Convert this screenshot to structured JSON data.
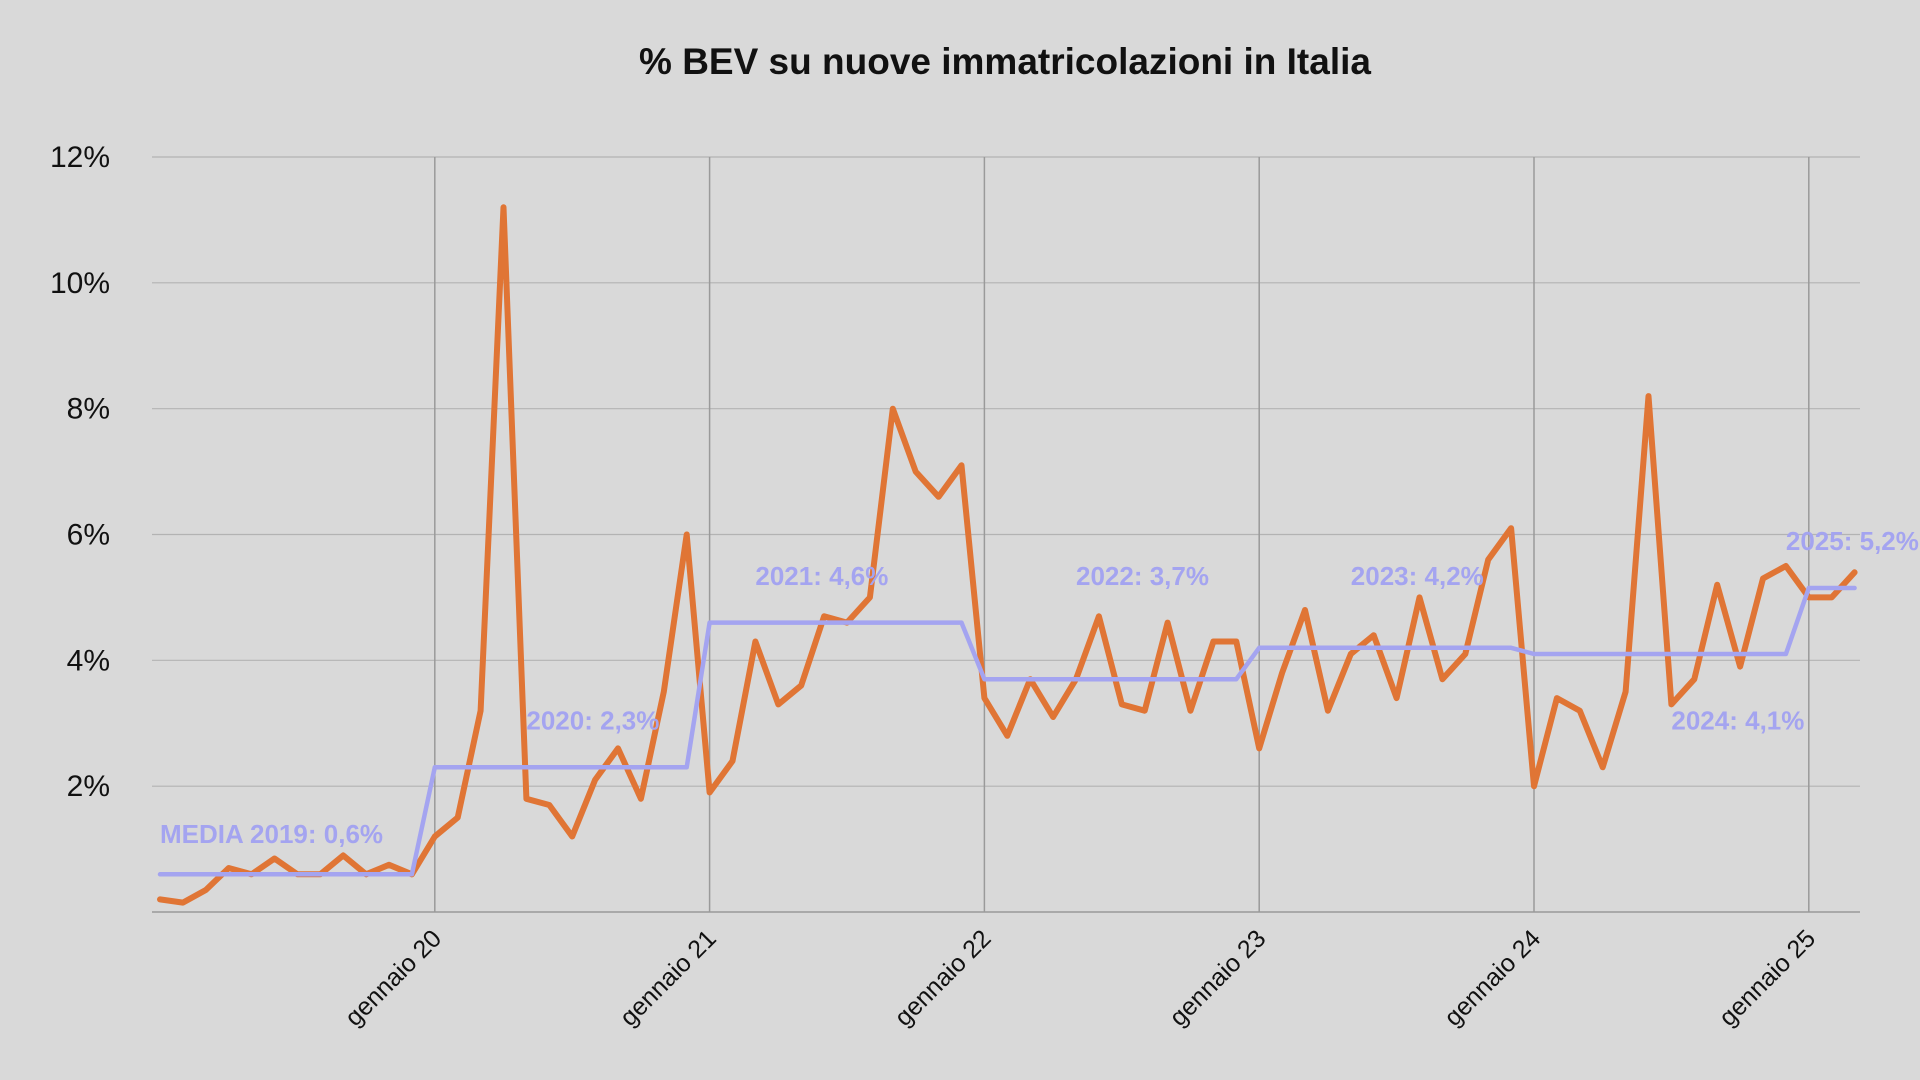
{
  "chart_data": {
    "type": "line",
    "title": "% BEV su nuove immatricolazioni in Italia",
    "xlabel": "",
    "ylabel": "",
    "ylim": [
      0,
      12
    ],
    "yticks": [
      {
        "value": 2,
        "label": "2%"
      },
      {
        "value": 4,
        "label": "4%"
      },
      {
        "value": 6,
        "label": "6%"
      },
      {
        "value": 8,
        "label": "8%"
      },
      {
        "value": 10,
        "label": "10%"
      },
      {
        "value": 12,
        "label": "12%"
      }
    ],
    "xticks": [
      {
        "value": "2020-01",
        "label": "gennaio 20"
      },
      {
        "value": "2021-01",
        "label": "gennaio 21"
      },
      {
        "value": "2022-01",
        "label": "gennaio 22"
      },
      {
        "value": "2023-01",
        "label": "gennaio 23"
      },
      {
        "value": "2024-01",
        "label": "gennaio 24"
      },
      {
        "value": "2025-01",
        "label": "gennaio 25"
      }
    ],
    "grid": true,
    "legend": "none",
    "x": [
      "2019-01",
      "2019-02",
      "2019-03",
      "2019-04",
      "2019-05",
      "2019-06",
      "2019-07",
      "2019-08",
      "2019-09",
      "2019-10",
      "2019-11",
      "2019-12",
      "2020-01",
      "2020-02",
      "2020-03",
      "2020-04",
      "2020-05",
      "2020-06",
      "2020-07",
      "2020-08",
      "2020-09",
      "2020-10",
      "2020-11",
      "2020-12",
      "2021-01",
      "2021-02",
      "2021-03",
      "2021-04",
      "2021-05",
      "2021-06",
      "2021-07",
      "2021-08",
      "2021-09",
      "2021-10",
      "2021-11",
      "2021-12",
      "2022-01",
      "2022-02",
      "2022-03",
      "2022-04",
      "2022-05",
      "2022-06",
      "2022-07",
      "2022-08",
      "2022-09",
      "2022-10",
      "2022-11",
      "2022-12",
      "2023-01",
      "2023-02",
      "2023-03",
      "2023-04",
      "2023-05",
      "2023-06",
      "2023-07",
      "2023-08",
      "2023-09",
      "2023-10",
      "2023-11",
      "2023-12",
      "2024-01",
      "2024-02",
      "2024-03",
      "2024-04",
      "2024-05",
      "2024-06",
      "2024-07",
      "2024-08",
      "2024-09",
      "2024-10",
      "2024-11",
      "2024-12",
      "2025-01",
      "2025-02",
      "2025-03"
    ],
    "series": [
      {
        "color": "#e07535",
        "values": [
          0.2,
          0.15,
          0.35,
          0.7,
          0.6,
          0.85,
          0.6,
          0.6,
          0.9,
          0.6,
          0.75,
          0.6,
          1.2,
          1.5,
          3.2,
          11.2,
          1.8,
          1.7,
          1.2,
          2.1,
          2.6,
          1.8,
          3.5,
          6.0,
          1.9,
          2.4,
          4.3,
          3.3,
          3.6,
          4.7,
          4.6,
          5.0,
          8.0,
          7.0,
          6.6,
          7.1,
          3.4,
          2.8,
          3.7,
          3.1,
          3.7,
          4.7,
          3.3,
          3.2,
          4.6,
          3.2,
          4.3,
          4.3,
          2.6,
          3.8,
          4.8,
          3.2,
          4.1,
          4.4,
          3.4,
          5.0,
          3.7,
          4.1,
          5.6,
          6.1,
          2.0,
          3.4,
          3.2,
          2.3,
          3.5,
          8.2,
          3.3,
          3.7,
          5.2,
          3.9,
          5.3,
          5.5,
          5.0,
          5.0,
          5.4
        ]
      },
      {
        "color": "#a4a4f0",
        "values": [
          0.6,
          0.6,
          0.6,
          0.6,
          0.6,
          0.6,
          0.6,
          0.6,
          0.6,
          0.6,
          0.6,
          0.6,
          2.3,
          2.3,
          2.3,
          2.3,
          2.3,
          2.3,
          2.3,
          2.3,
          2.3,
          2.3,
          2.3,
          2.3,
          4.6,
          4.6,
          4.6,
          4.6,
          4.6,
          4.6,
          4.6,
          4.6,
          4.6,
          4.6,
          4.6,
          4.6,
          3.7,
          3.7,
          3.7,
          3.7,
          3.7,
          3.7,
          3.7,
          3.7,
          3.7,
          3.7,
          3.7,
          3.7,
          4.2,
          4.2,
          4.2,
          4.2,
          4.2,
          4.2,
          4.2,
          4.2,
          4.2,
          4.2,
          4.2,
          4.2,
          4.1,
          4.1,
          4.1,
          4.1,
          4.1,
          4.1,
          4.1,
          4.1,
          4.1,
          4.1,
          4.1,
          4.1,
          5.15,
          5.15,
          5.15
        ]
      }
    ],
    "annotations": [
      {
        "text": "MEDIA 2019: 0,6%",
        "x": "2019-01",
        "y": 1.1
      },
      {
        "text": "2020: 2,3%",
        "x": "2020-05",
        "y": 2.9
      },
      {
        "text": "2021: 4,6%",
        "x": "2021-03",
        "y": 5.2
      },
      {
        "text": "2022: 3,7%",
        "x": "2022-05",
        "y": 5.2
      },
      {
        "text": "2023: 4,2%",
        "x": "2023-05",
        "y": 5.2
      },
      {
        "text": "2024: 4,1%",
        "x": "2024-07",
        "y": 2.9
      },
      {
        "text": "2025: 5,2%",
        "x": "2024-12",
        "y": 5.75
      }
    ],
    "annotation_color": "#a4a4f0"
  }
}
